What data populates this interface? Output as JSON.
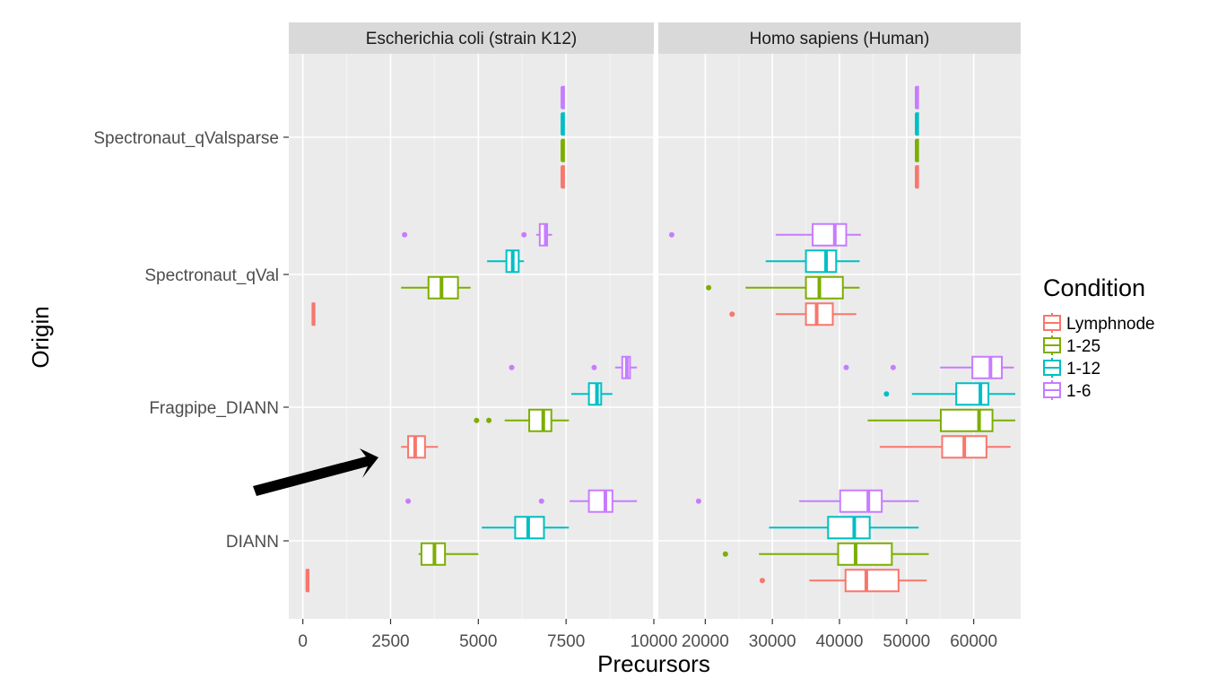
{
  "chart_data": {
    "type": "boxplot",
    "orientation": "horizontal",
    "xlabel": "Precursors",
    "ylabel": "Origin",
    "categories": [
      "Spectronaut_qValsparse",
      "Spectronaut_qVal",
      "Fragpipe_DIANN",
      "DIANN"
    ],
    "legend": {
      "title": "Condition",
      "position": "right",
      "items": [
        {
          "name": "Lymphnode",
          "color": "#F8766D"
        },
        {
          "name": "1-25",
          "color": "#7CAE00"
        },
        {
          "name": "1-12",
          "color": "#00BFC4"
        },
        {
          "name": "1-6",
          "color": "#C77CFF"
        }
      ]
    },
    "arrow_annotation": {
      "panel": 0,
      "from": [
        -500,
        0.45
      ],
      "to": [
        2300,
        0.75
      ]
    },
    "panels": [
      {
        "title": "Escherichia coli (strain K12)",
        "xlim": [
          -400,
          10000
        ],
        "ticks": [
          0,
          2500,
          5000,
          7500,
          10000
        ],
        "tick_labels": [
          "0",
          "2500",
          "5000",
          "7500",
          "10000"
        ],
        "series": [
          {
            "name": "Lymphnode",
            "boxes": [
              {
                "min": 7380,
                "q1": 7390,
                "median": 7395,
                "q3": 7400,
                "max": 7410,
                "outliers": []
              },
              {
                "min": 270,
                "q1": 280,
                "median": 300,
                "q3": 330,
                "max": 350,
                "outliers": []
              },
              {
                "min": 2800,
                "q1": 3000,
                "median": 3200,
                "q3": 3480,
                "max": 3850,
                "outliers": []
              },
              {
                "min": 100,
                "q1": 110,
                "median": 130,
                "q3": 150,
                "max": 170,
                "outliers": []
              }
            ]
          },
          {
            "name": "1-25",
            "boxes": [
              {
                "min": 7380,
                "q1": 7390,
                "median": 7395,
                "q3": 7400,
                "max": 7410,
                "outliers": []
              },
              {
                "min": 2800,
                "q1": 3580,
                "median": 3950,
                "q3": 4420,
                "max": 4780,
                "outliers": []
              },
              {
                "min": 5750,
                "q1": 6450,
                "median": 6850,
                "q3": 7080,
                "max": 7580,
                "outliers": [
                  4950,
                  5300
                ]
              },
              {
                "min": 3300,
                "q1": 3380,
                "median": 3750,
                "q3": 4050,
                "max": 5000,
                "outliers": []
              }
            ]
          },
          {
            "name": "1-12",
            "boxes": [
              {
                "min": 7380,
                "q1": 7390,
                "median": 7395,
                "q3": 7400,
                "max": 7410,
                "outliers": []
              },
              {
                "min": 5250,
                "q1": 5800,
                "median": 5980,
                "q3": 6150,
                "max": 6300,
                "outliers": []
              },
              {
                "min": 7650,
                "q1": 8150,
                "median": 8380,
                "q3": 8500,
                "max": 8820,
                "outliers": []
              },
              {
                "min": 5100,
                "q1": 6050,
                "median": 6420,
                "q3": 6870,
                "max": 7580,
                "outliers": []
              }
            ]
          },
          {
            "name": "1-6",
            "boxes": [
              {
                "min": 7380,
                "q1": 7390,
                "median": 7395,
                "q3": 7400,
                "max": 7410,
                "outliers": []
              },
              {
                "min": 6650,
                "q1": 6750,
                "median": 6920,
                "q3": 6960,
                "max": 7100,
                "outliers": [
                  2900,
                  6300
                ]
              },
              {
                "min": 8900,
                "q1": 9100,
                "median": 9230,
                "q3": 9320,
                "max": 9520,
                "outliers": [
                  5950,
                  8300
                ]
              },
              {
                "min": 7600,
                "q1": 8150,
                "median": 8620,
                "q3": 8820,
                "max": 9520,
                "outliers": [
                  3000,
                  6800
                ]
              }
            ]
          }
        ]
      },
      {
        "title": "Homo sapiens (Human)",
        "xlim": [
          13000,
          67000
        ],
        "ticks": [
          20000,
          30000,
          40000,
          50000,
          60000
        ],
        "tick_labels": [
          "20000",
          "30000",
          "40000",
          "50000",
          "60000"
        ],
        "series": [
          {
            "name": "Lymphnode",
            "boxes": [
              {
                "min": 51400,
                "q1": 51450,
                "median": 51500,
                "q3": 51550,
                "max": 51600,
                "outliers": []
              },
              {
                "min": 30500,
                "q1": 35000,
                "median": 36600,
                "q3": 39000,
                "max": 42500,
                "outliers": [
                  24000
                ]
              },
              {
                "min": 46000,
                "q1": 55300,
                "median": 58600,
                "q3": 61900,
                "max": 65500,
                "outliers": []
              },
              {
                "min": 35500,
                "q1": 40900,
                "median": 44000,
                "q3": 48800,
                "max": 53000,
                "outliers": [
                  28500
                ]
              }
            ]
          },
          {
            "name": "1-25",
            "boxes": [
              {
                "min": 51400,
                "q1": 51450,
                "median": 51500,
                "q3": 51550,
                "max": 51600,
                "outliers": []
              },
              {
                "min": 26000,
                "q1": 35000,
                "median": 37000,
                "q3": 40500,
                "max": 43000,
                "outliers": [
                  20500
                ]
              },
              {
                "min": 44200,
                "q1": 55100,
                "median": 60800,
                "q3": 62800,
                "max": 66200,
                "outliers": []
              },
              {
                "min": 28000,
                "q1": 39800,
                "median": 42400,
                "q3": 47800,
                "max": 53300,
                "outliers": [
                  23000
                ]
              }
            ]
          },
          {
            "name": "1-12",
            "boxes": [
              {
                "min": 51400,
                "q1": 51450,
                "median": 51500,
                "q3": 51550,
                "max": 51600,
                "outliers": []
              },
              {
                "min": 29000,
                "q1": 35000,
                "median": 38000,
                "q3": 39500,
                "max": 43000,
                "outliers": []
              },
              {
                "min": 50800,
                "q1": 57400,
                "median": 61000,
                "q3": 62200,
                "max": 66200,
                "outliers": [
                  47000
                ]
              },
              {
                "min": 29500,
                "q1": 38300,
                "median": 42200,
                "q3": 44500,
                "max": 51800,
                "outliers": []
              }
            ]
          },
          {
            "name": "1-6",
            "boxes": [
              {
                "min": 51400,
                "q1": 51450,
                "median": 51500,
                "q3": 51550,
                "max": 51600,
                "outliers": []
              },
              {
                "min": 30500,
                "q1": 36000,
                "median": 39300,
                "q3": 41000,
                "max": 43200,
                "outliers": [
                  15000
                ]
              },
              {
                "min": 55000,
                "q1": 59800,
                "median": 62500,
                "q3": 64200,
                "max": 66000,
                "outliers": [
                  41000,
                  48000
                ]
              },
              {
                "min": 34000,
                "q1": 40100,
                "median": 44300,
                "q3": 46300,
                "max": 51800,
                "outliers": [
                  19000
                ]
              }
            ]
          }
        ]
      }
    ]
  }
}
